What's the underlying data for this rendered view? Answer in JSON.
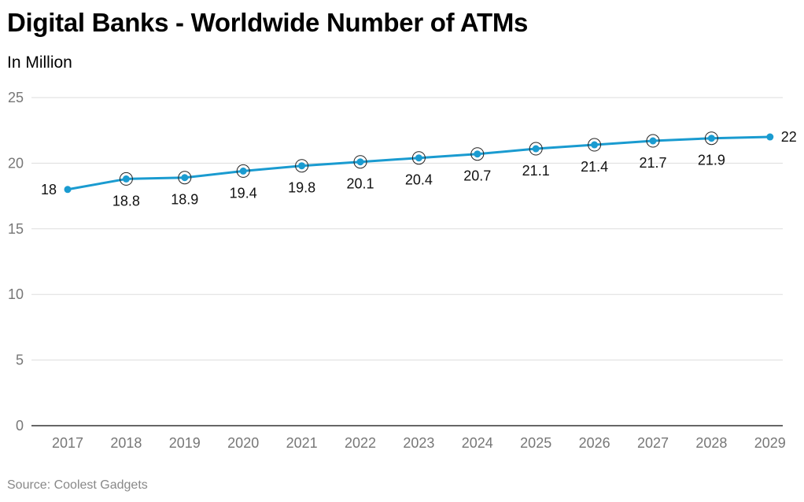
{
  "title": "Digital Banks - Worldwide Number of ATMs",
  "subtitle": "In Million",
  "source": "Source: Coolest Gadgets",
  "colors": {
    "line": "#1a9bd0",
    "grid": "#dddddd",
    "axis": "#333333"
  },
  "chart_data": {
    "type": "line",
    "title": "Digital Banks - Worldwide Number of ATMs",
    "subtitle": "In Million",
    "xlabel": "",
    "ylabel": "",
    "categories": [
      "2017",
      "2018",
      "2019",
      "2020",
      "2021",
      "2022",
      "2023",
      "2024",
      "2025",
      "2026",
      "2027",
      "2028",
      "2029"
    ],
    "values": [
      18,
      18.8,
      18.9,
      19.4,
      19.8,
      20.1,
      20.4,
      20.7,
      21.1,
      21.4,
      21.7,
      21.9,
      22
    ],
    "value_labels": [
      "18",
      "18.8",
      "18.9",
      "19.4",
      "19.8",
      "20.1",
      "20.4",
      "20.7",
      "21.1",
      "21.4",
      "21.7",
      "21.9",
      "22"
    ],
    "ylim": [
      0,
      25
    ],
    "yticks": [
      "0",
      "5",
      "10",
      "15",
      "20",
      "25"
    ],
    "grid": true
  }
}
